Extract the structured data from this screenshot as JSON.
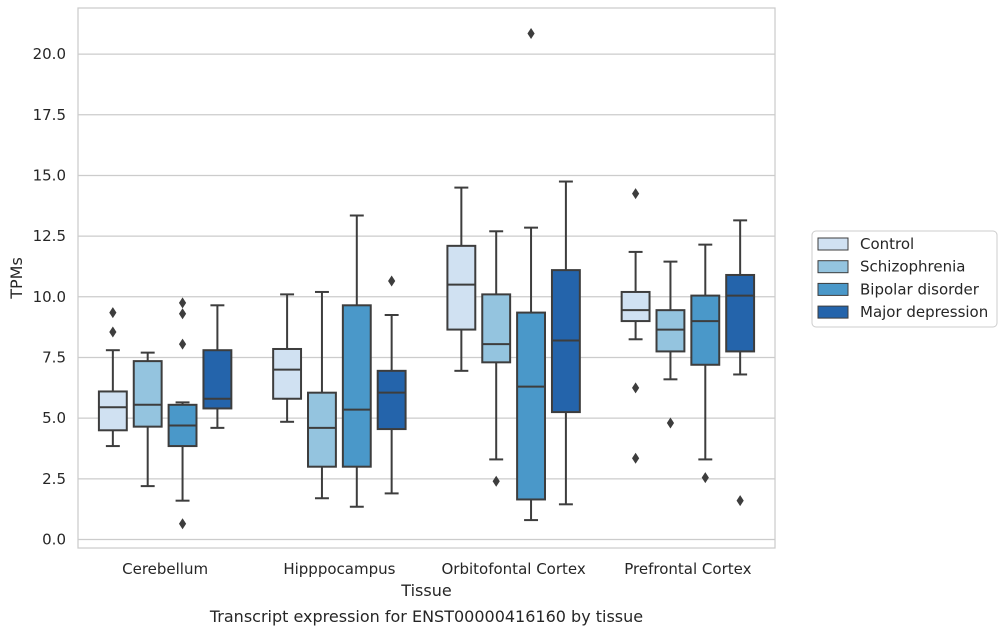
{
  "chart_data": {
    "type": "box",
    "caption": "Transcript expression for ENST00000416160 by tissue",
    "xlabel": "Tissue",
    "ylabel": "TPMs",
    "ylim": [
      -0.35,
      21.9
    ],
    "yticks": [
      0.0,
      2.5,
      5.0,
      7.5,
      10.0,
      12.5,
      15.0,
      17.5,
      20.0
    ],
    "ytick_labels": [
      "0.0",
      "2.5",
      "5.0",
      "7.5",
      "10.0",
      "12.5",
      "15.0",
      "17.5",
      "20.0"
    ],
    "grid": "horizontal",
    "legend_position": "right",
    "categories": [
      "Cerebellum",
      "Hipppocampus",
      "Orbitofontal Cortex",
      "Prefrontal Cortex"
    ],
    "series": [
      {
        "name": "Control",
        "color": "#d0e1f2",
        "boxes": [
          {
            "whislo": 3.85,
            "q1": 4.5,
            "med": 5.45,
            "q3": 6.1,
            "whishi": 7.8,
            "fliers": [
              8.55,
              9.35
            ]
          },
          {
            "whislo": 4.85,
            "q1": 5.8,
            "med": 7.0,
            "q3": 7.85,
            "whishi": 10.1,
            "fliers": []
          },
          {
            "whislo": 6.95,
            "q1": 8.65,
            "med": 10.5,
            "q3": 12.1,
            "whishi": 14.5,
            "fliers": []
          },
          {
            "whislo": 8.25,
            "q1": 9.0,
            "med": 9.45,
            "q3": 10.2,
            "whishi": 11.85,
            "fliers": [
              3.35,
              6.25,
              14.25
            ]
          }
        ]
      },
      {
        "name": "Schizophrenia",
        "color": "#94c4df",
        "boxes": [
          {
            "whislo": 2.2,
            "q1": 4.65,
            "med": 5.55,
            "q3": 7.35,
            "whishi": 7.7,
            "fliers": []
          },
          {
            "whislo": 1.7,
            "q1": 3.0,
            "med": 4.6,
            "q3": 6.05,
            "whishi": 10.2,
            "fliers": []
          },
          {
            "whislo": 3.3,
            "q1": 7.3,
            "med": 8.05,
            "q3": 10.1,
            "whishi": 12.7,
            "fliers": [
              2.4
            ]
          },
          {
            "whislo": 6.6,
            "q1": 7.75,
            "med": 8.65,
            "q3": 9.45,
            "whishi": 11.45,
            "fliers": [
              4.8
            ]
          }
        ]
      },
      {
        "name": "Bipolar disorder",
        "color": "#4a98c9",
        "boxes": [
          {
            "whislo": 1.6,
            "q1": 3.85,
            "med": 4.7,
            "q3": 5.55,
            "whishi": 5.65,
            "fliers": [
              0.65,
              8.05,
              9.3,
              9.75
            ]
          },
          {
            "whislo": 1.35,
            "q1": 3.0,
            "med": 5.35,
            "q3": 9.65,
            "whishi": 13.35,
            "fliers": []
          },
          {
            "whislo": 0.8,
            "q1": 1.65,
            "med": 6.3,
            "q3": 9.35,
            "whishi": 12.85,
            "fliers": [
              20.85
            ]
          },
          {
            "whislo": 3.3,
            "q1": 7.2,
            "med": 9.0,
            "q3": 10.05,
            "whishi": 12.15,
            "fliers": [
              2.55
            ]
          }
        ]
      },
      {
        "name": "Major depression",
        "color": "#2464ab",
        "boxes": [
          {
            "whislo": 4.6,
            "q1": 5.4,
            "med": 5.8,
            "q3": 7.8,
            "whishi": 9.65,
            "fliers": []
          },
          {
            "whislo": 1.9,
            "q1": 4.55,
            "med": 6.05,
            "q3": 6.95,
            "whishi": 9.25,
            "fliers": [
              10.65
            ]
          },
          {
            "whislo": 1.45,
            "q1": 5.25,
            "med": 8.2,
            "q3": 11.1,
            "whishi": 14.75,
            "fliers": []
          },
          {
            "whislo": 6.8,
            "q1": 7.75,
            "med": 10.05,
            "q3": 10.9,
            "whishi": 13.15,
            "fliers": [
              1.6
            ]
          }
        ]
      }
    ]
  }
}
